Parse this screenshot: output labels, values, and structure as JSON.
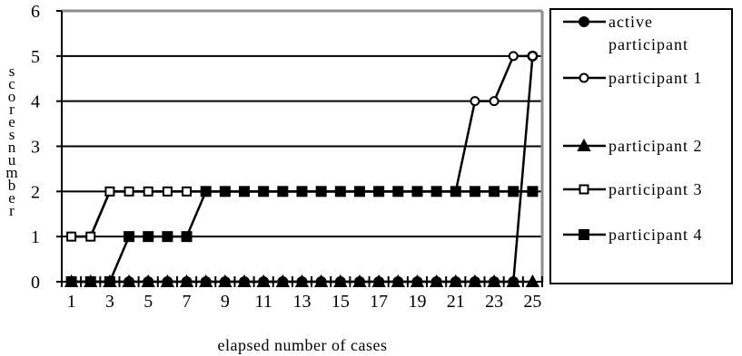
{
  "chart_data": {
    "type": "line",
    "title": "",
    "xlabel": "elapsed number of cases",
    "ylabel": "number of scores",
    "ylabel_display": "scores number",
    "x": [
      1,
      2,
      3,
      4,
      5,
      6,
      7,
      8,
      9,
      10,
      11,
      12,
      13,
      14,
      15,
      16,
      17,
      18,
      19,
      20,
      21,
      22,
      23,
      24,
      25
    ],
    "x_tick_labels": [
      "1",
      "3",
      "5",
      "7",
      "9",
      "11",
      "13",
      "15",
      "17",
      "19",
      "21",
      "23",
      "25"
    ],
    "y_ticks": [
      "0",
      "1",
      "2",
      "3",
      "4",
      "5",
      "6"
    ],
    "ylim": [
      0,
      6
    ],
    "xlim": [
      0.5,
      25.5
    ],
    "grid": "horizontal",
    "legend_position": "right",
    "series": [
      {
        "name": "active participant",
        "marker": "filled-circle",
        "values": [
          0,
          0,
          0,
          0,
          0,
          0,
          0,
          0,
          0,
          0,
          0,
          0,
          0,
          0,
          0,
          0,
          0,
          0,
          0,
          0,
          0,
          0,
          0,
          0,
          5
        ]
      },
      {
        "name": "participant 1",
        "marker": "open-circle",
        "values": [
          1,
          1,
          2,
          2,
          2,
          2,
          2,
          2,
          2,
          2,
          2,
          2,
          2,
          2,
          2,
          2,
          2,
          2,
          2,
          2,
          2,
          4,
          4,
          5,
          5
        ]
      },
      {
        "name": "participant 2",
        "marker": "filled-triangle",
        "values": [
          0,
          0,
          0,
          0,
          0,
          0,
          0,
          0,
          0,
          0,
          0,
          0,
          0,
          0,
          0,
          0,
          0,
          0,
          0,
          0,
          0,
          0,
          0,
          0,
          0
        ]
      },
      {
        "name": "participant 3",
        "marker": "open-square",
        "values": [
          1,
          1,
          2,
          2,
          2,
          2,
          2,
          2,
          2,
          2,
          2,
          2,
          2,
          2,
          2,
          2,
          2,
          2,
          2,
          2,
          2,
          2,
          2,
          2,
          2
        ]
      },
      {
        "name": "participant 4",
        "marker": "filled-square",
        "values": [
          0,
          0,
          0,
          1,
          1,
          1,
          1,
          2,
          2,
          2,
          2,
          2,
          2,
          2,
          2,
          2,
          2,
          2,
          2,
          2,
          2,
          2,
          2,
          2,
          2
        ]
      }
    ]
  }
}
